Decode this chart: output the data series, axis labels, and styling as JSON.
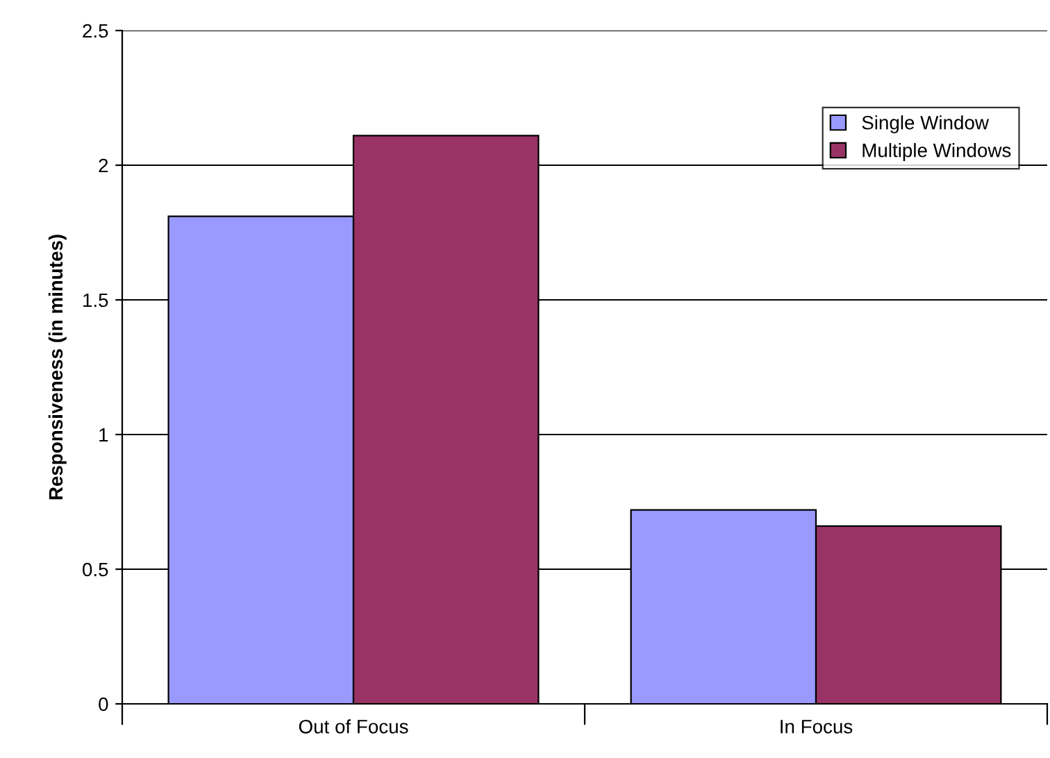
{
  "chart_data": {
    "type": "bar",
    "ylabel": "Responsiveness (in minutes)",
    "categories": [
      "Out of Focus",
      "In Focus"
    ],
    "series": [
      {
        "name": "Single Window",
        "color": "#9999ff",
        "values": [
          1.81,
          0.72
        ]
      },
      {
        "name": "Multiple Windows",
        "color": "#993366",
        "values": [
          2.11,
          0.66
        ]
      }
    ],
    "ylim": [
      0,
      2.5
    ],
    "yticks": [
      0,
      0.5,
      1,
      1.5,
      2,
      2.5
    ],
    "grid": "y",
    "legend": "top right"
  }
}
